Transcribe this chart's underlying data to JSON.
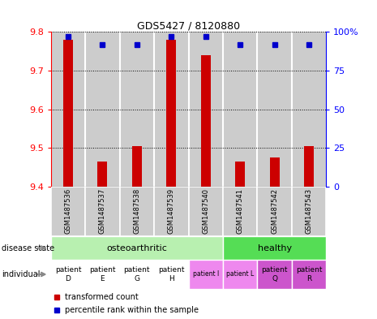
{
  "title": "GDS5427 / 8120880",
  "samples": [
    "GSM1487536",
    "GSM1487537",
    "GSM1487538",
    "GSM1487539",
    "GSM1487540",
    "GSM1487541",
    "GSM1487542",
    "GSM1487543"
  ],
  "red_values": [
    9.78,
    9.465,
    9.505,
    9.78,
    9.74,
    9.465,
    9.475,
    9.505
  ],
  "blue_values": [
    97,
    92,
    92,
    97,
    97,
    92,
    92,
    92
  ],
  "ymin": 9.4,
  "ymax": 9.8,
  "yticks": [
    9.4,
    9.5,
    9.6,
    9.7,
    9.8
  ],
  "ytick_labels": [
    "9.4",
    "9.5",
    "9.6",
    "9.7",
    "9.8"
  ],
  "y2min": 0,
  "y2max": 100,
  "y2ticks": [
    0,
    25,
    50,
    75,
    100
  ],
  "y2ticklabels": [
    "0",
    "25",
    "50",
    "75",
    "100%"
  ],
  "bar_color": "#cc0000",
  "dot_color": "#0000cc",
  "bar_bg": "#cccccc",
  "bar_bg_white": "#ffffff",
  "osteo_color": "#b8f0b0",
  "healthy_color": "#55dd55",
  "indiv_white": "#ffffff",
  "indiv_pink_light": "#ee88ee",
  "indiv_pink_dark": "#cc55cc",
  "legend_red": "transformed count",
  "legend_blue": "percentile rank within the sample"
}
